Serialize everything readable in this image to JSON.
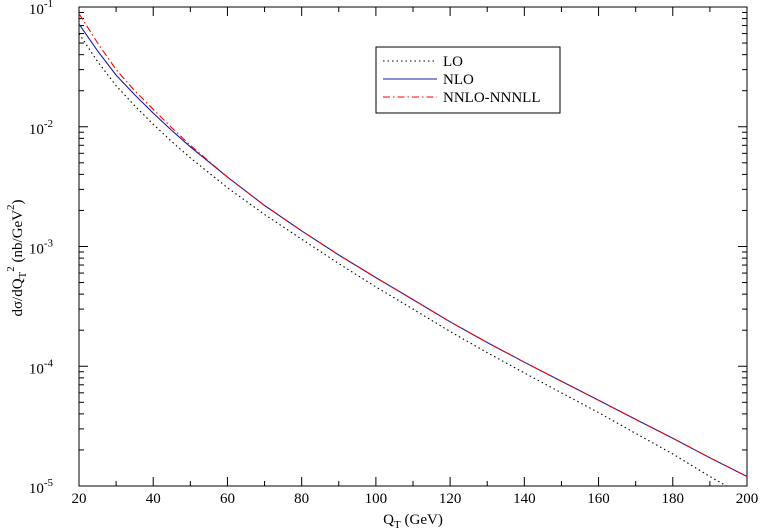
{
  "chart_data": {
    "type": "line",
    "title": "",
    "xlabel": "Q_T (GeV)",
    "ylabel": "dσ/dQ_T^2 (nb/GeV^2)",
    "xlim": [
      20,
      200
    ],
    "ylim": [
      1e-05,
      0.1
    ],
    "y_scale": "log",
    "grid": false,
    "legend_position": "top-right",
    "x_ticks": [
      20,
      40,
      60,
      80,
      100,
      120,
      140,
      160,
      180,
      200
    ],
    "y_ticks": [
      {
        "value": 1e-05,
        "mantissa": "10",
        "exponent": "-5"
      },
      {
        "value": 0.0001,
        "mantissa": "10",
        "exponent": "-4"
      },
      {
        "value": 0.001,
        "mantissa": "10",
        "exponent": "-3"
      },
      {
        "value": 0.01,
        "mantissa": "10",
        "exponent": "-2"
      },
      {
        "value": 0.1,
        "mantissa": "10",
        "exponent": "-1"
      }
    ],
    "x": [
      20,
      25,
      30,
      35,
      40,
      45,
      50,
      60,
      70,
      80,
      90,
      100,
      110,
      120,
      130,
      140,
      150,
      160,
      170,
      180,
      190,
      200
    ],
    "series": [
      {
        "name": "LO",
        "color": "#000000",
        "style": "dotted",
        "values": [
          0.06,
          0.035,
          0.022,
          0.015,
          0.0105,
          0.0075,
          0.0055,
          0.0031,
          0.00185,
          0.00115,
          0.00072,
          0.00046,
          0.0003,
          0.000195,
          0.00013,
          8.8e-05,
          6e-05,
          4.1e-05,
          2.75e-05,
          1.85e-05,
          1.2e-05,
          8e-06
        ]
      },
      {
        "name": "NLO",
        "color": "#1a1aa6",
        "style": "solid",
        "values": [
          0.072,
          0.043,
          0.027,
          0.0185,
          0.013,
          0.0093,
          0.0068,
          0.0038,
          0.0022,
          0.00135,
          0.00085,
          0.00055,
          0.00036,
          0.000235,
          0.000158,
          0.000108,
          7.5e-05,
          5.2e-05,
          3.6e-05,
          2.5e-05,
          1.72e-05,
          1.2e-05
        ]
      },
      {
        "name": "NNLO-NNNLL",
        "color": "#ff0000",
        "style": "dashdot",
        "values": [
          0.088,
          0.05,
          0.03,
          0.02,
          0.014,
          0.0098,
          0.007,
          0.0038,
          0.0022,
          0.00135,
          0.00085,
          0.00055,
          0.00036,
          0.000235,
          0.000158,
          0.000108,
          7.5e-05,
          5.2e-05,
          3.6e-05,
          2.5e-05,
          1.72e-05,
          1.2e-05
        ]
      }
    ]
  }
}
